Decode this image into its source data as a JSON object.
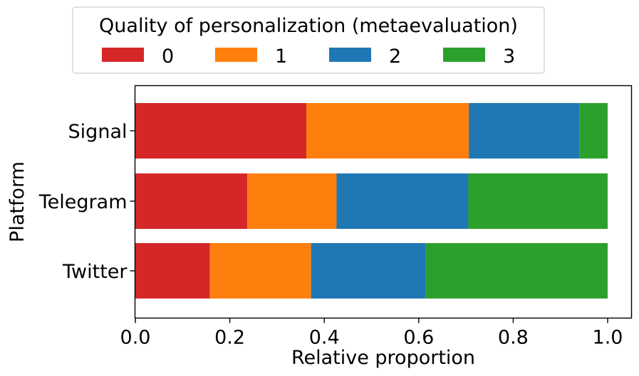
{
  "chart_data": {
    "type": "bar",
    "orientation": "horizontal",
    "stacked": true,
    "categories": [
      "Signal",
      "Telegram",
      "Twitter"
    ],
    "series": [
      {
        "name": "0",
        "color": "#d62728",
        "values": [
          0.362,
          0.237,
          0.158
        ]
      },
      {
        "name": "1",
        "color": "#ff7f0e",
        "values": [
          0.344,
          0.189,
          0.214
        ]
      },
      {
        "name": "2",
        "color": "#1f77b4",
        "values": [
          0.234,
          0.279,
          0.243
        ]
      },
      {
        "name": "3",
        "color": "#2ca02c",
        "values": [
          0.06,
          0.295,
          0.385
        ]
      }
    ],
    "xlabel": "Relative proportion",
    "ylabel": "Platform",
    "xlim": [
      0.0,
      1.05
    ],
    "xticks": [
      "0.0",
      "0.2",
      "0.4",
      "0.6",
      "0.8",
      "1.0"
    ],
    "xtick_values": [
      0.0,
      0.2,
      0.4,
      0.6,
      0.8,
      1.0
    ],
    "legend_title": "Quality of personalization (metaevaluation)",
    "legend_position": "top-center",
    "grid": false
  }
}
